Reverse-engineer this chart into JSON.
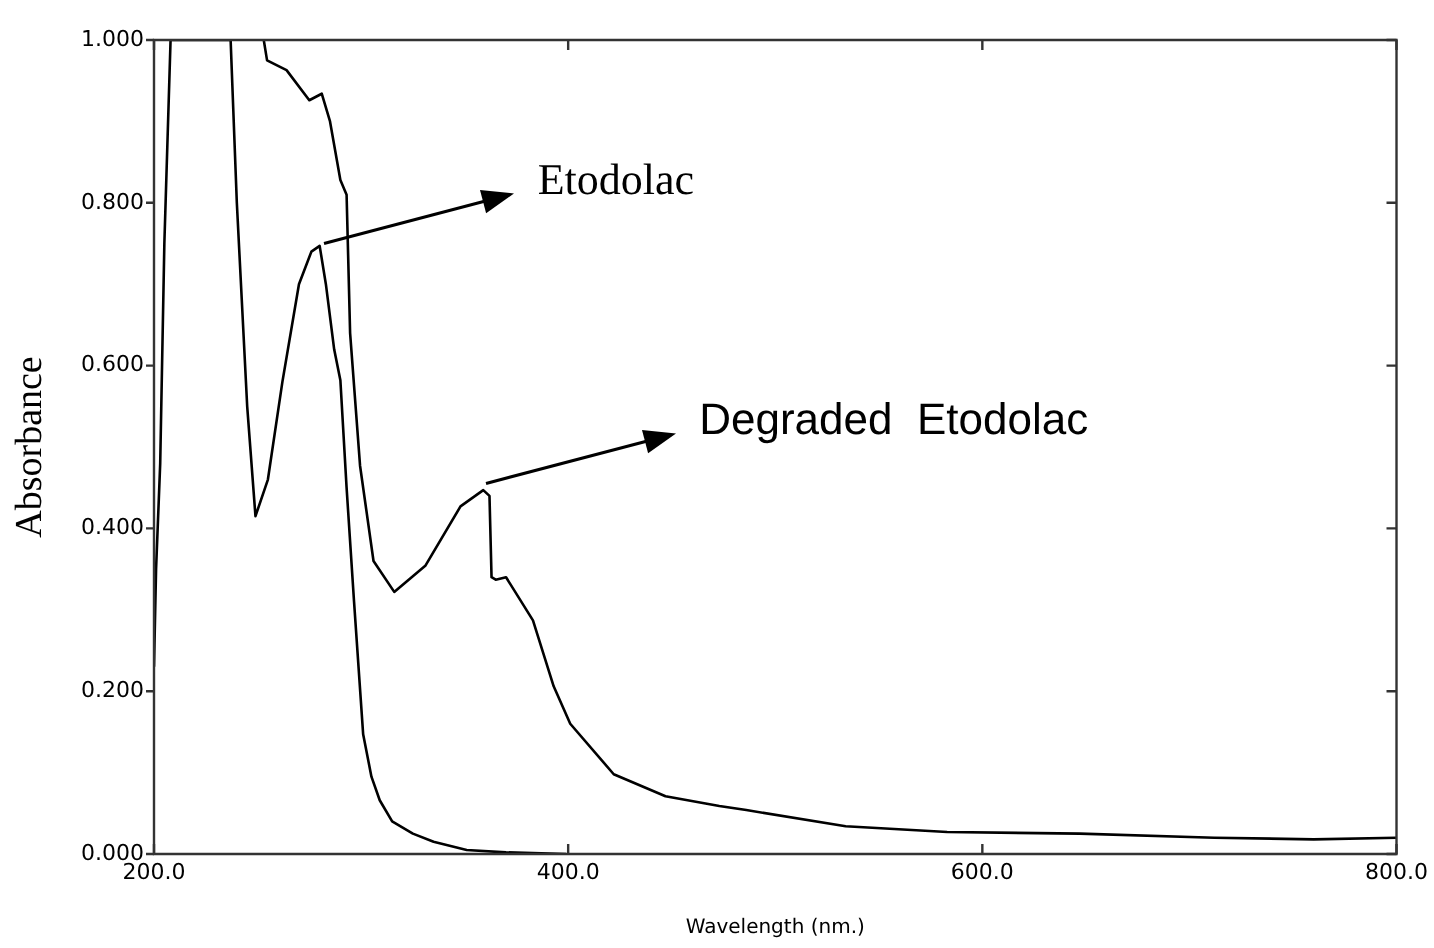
{
  "chart_data": {
    "type": "line",
    "xlabel": "Wavelength (nm.)",
    "ylabel": "Absorbance",
    "xlim": [
      200,
      800
    ],
    "ylim": [
      0,
      1
    ],
    "xticks": [
      {
        "value": 200,
        "label": "200.0"
      },
      {
        "value": 400,
        "label": "400.0"
      },
      {
        "value": 600,
        "label": "600.0"
      },
      {
        "value": 800,
        "label": "800.0"
      }
    ],
    "yticks": [
      {
        "value": 0,
        "label": "0.000"
      },
      {
        "value": 0.2,
        "label": "0.200"
      },
      {
        "value": 0.4,
        "label": "0.400"
      },
      {
        "value": 0.6,
        "label": "0.600"
      },
      {
        "value": 0.8,
        "label": "0.800"
      },
      {
        "value": 1,
        "label": "1.000"
      }
    ],
    "grid": false,
    "legend": false,
    "marker": "none",
    "line_style": "solid",
    "series": [
      {
        "color": "#000000",
        "x": [
          200,
          201,
          203,
          205,
          208,
          215,
          225,
          237,
          240,
          245,
          249,
          255,
          262,
          270,
          276,
          280,
          283,
          287,
          290,
          293,
          296.6,
          301,
          305,
          309,
          315,
          325,
          335,
          351,
          370,
          399
        ],
        "values": [
          0.23,
          0.35,
          0.48,
          0.75,
          1.0,
          1.0,
          1.0,
          1.0,
          0.8,
          0.55,
          0.415,
          0.46,
          0.58,
          0.7,
          0.74,
          0.747,
          0.7,
          0.62,
          0.582,
          0.45,
          0.31,
          0.147,
          0.095,
          0.066,
          0.04,
          0.025,
          0.015,
          0.005,
          0.002,
          0.0
        ]
      },
      {
        "color": "#000000",
        "x": [
          253,
          254.6,
          264,
          275,
          281,
          285,
          290,
          293,
          294.7,
          299.5,
          306,
          316,
          331,
          348,
          359,
          362,
          363,
          365,
          370,
          383,
          393,
          401,
          422,
          447,
          473,
          486,
          534,
          583,
          647,
          712,
          760,
          800
        ],
        "values": [
          1.0,
          0.975,
          0.963,
          0.926,
          0.934,
          0.9,
          0.828,
          0.81,
          0.64,
          0.477,
          0.36,
          0.322,
          0.354,
          0.427,
          0.447,
          0.44,
          0.34,
          0.337,
          0.34,
          0.287,
          0.206,
          0.16,
          0.098,
          0.071,
          0.059,
          0.054,
          0.034,
          0.027,
          0.025,
          0.02,
          0.018,
          0.02
        ]
      }
    ],
    "annotations": [
      {
        "text": "Etodolac",
        "x": 280,
        "y": 0.747
      },
      {
        "text": "Degraded  Etodolac",
        "x": 358,
        "y": 0.452
      }
    ]
  }
}
